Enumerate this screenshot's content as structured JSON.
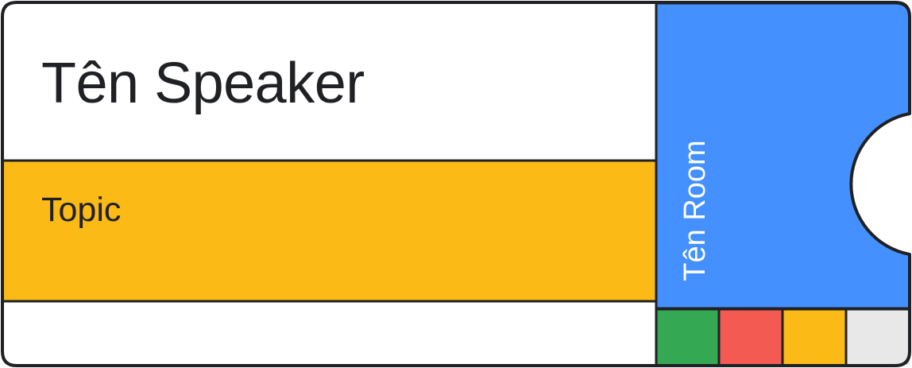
{
  "ticket": {
    "speaker_name": "Tên Speaker",
    "topic": "Topic",
    "room_name": "Tên Room"
  },
  "colors": {
    "outline": "#202124",
    "background": "#ffffff",
    "topic_band": "#fbba15",
    "room_panel": "#4590ff",
    "swatch_green": "#34a853",
    "swatch_red": "#f35b52",
    "swatch_yellow": "#fbba15",
    "swatch_grey": "#e8e8e9"
  }
}
